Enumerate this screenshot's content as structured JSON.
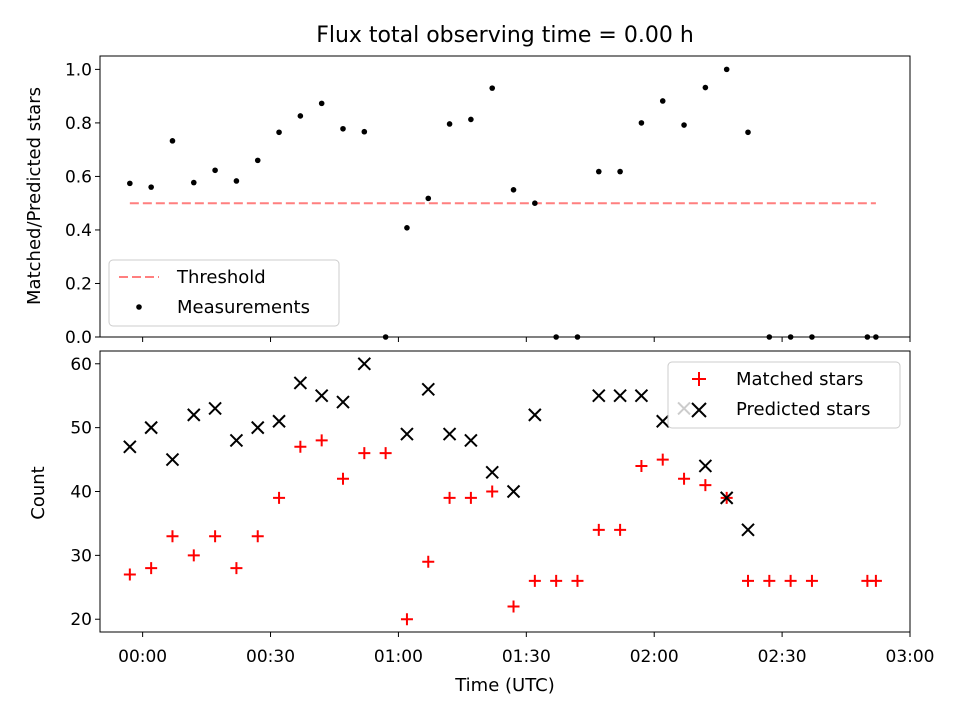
{
  "chart_data": [
    {
      "type": "scatter",
      "title": "Flux total observing time = 0.00 h",
      "xlabel": "",
      "ylabel": "Matched/Predicted stars",
      "ylim": [
        0,
        1.05
      ],
      "yticks": [
        0.0,
        0.2,
        0.4,
        0.6,
        0.8,
        1.0
      ],
      "ytick_labels": [
        "0.0",
        "0.2",
        "0.4",
        "0.6",
        "0.8",
        "1.0"
      ],
      "x_unit": "minutes after 00:00 UTC",
      "xlim": [
        -10,
        180
      ],
      "grid": false,
      "legend_placement": "lower-left",
      "series": [
        {
          "name": "Threshold",
          "style": "dashed-line",
          "color": "#ff7f7f",
          "x": [
            -3,
            172
          ],
          "y": [
            0.5,
            0.5
          ]
        },
        {
          "name": "Measurements",
          "style": "dot",
          "color": "#000000",
          "x": [
            -3,
            2,
            7,
            12,
            17,
            22,
            27,
            32,
            37,
            42,
            47,
            52,
            57,
            62,
            67,
            72,
            77,
            82,
            87,
            92,
            97,
            102,
            107,
            112,
            117,
            122,
            127,
            132,
            137,
            142,
            147,
            152,
            157,
            170,
            172
          ],
          "y": [
            0.574,
            0.56,
            0.733,
            0.577,
            0.623,
            0.583,
            0.66,
            0.765,
            0.826,
            0.873,
            0.778,
            0.767,
            0.0,
            0.408,
            0.518,
            0.796,
            0.813,
            0.93,
            0.55,
            0.5,
            0.0,
            0.0,
            0.618,
            0.618,
            0.8,
            0.882,
            0.792,
            0.932,
            1.0,
            0.765,
            0.0,
            0.0,
            0.0,
            0.0,
            0.0
          ]
        }
      ]
    },
    {
      "type": "scatter",
      "title": "",
      "xlabel": "Time (UTC)",
      "ylabel": "Count",
      "ylim": [
        18,
        62
      ],
      "yticks": [
        20,
        30,
        40,
        50,
        60
      ],
      "ytick_labels": [
        "20",
        "30",
        "40",
        "50",
        "60"
      ],
      "x_unit": "minutes after 00:00 UTC",
      "xlim": [
        -10,
        180
      ],
      "xticks": [
        0,
        30,
        60,
        90,
        120,
        150,
        180
      ],
      "xtick_labels": [
        "00:00",
        "00:30",
        "01:00",
        "01:30",
        "02:00",
        "02:30",
        "03:00"
      ],
      "grid": false,
      "legend_placement": "upper-right",
      "series": [
        {
          "name": "Matched stars",
          "marker": "plus",
          "color": "#ff0000",
          "x": [
            -3,
            2,
            7,
            12,
            17,
            22,
            27,
            32,
            37,
            42,
            47,
            52,
            57,
            62,
            67,
            72,
            77,
            82,
            87,
            92,
            97,
            102,
            107,
            112,
            117,
            122,
            127,
            132,
            137,
            142,
            147,
            152,
            157,
            170,
            172
          ],
          "y": [
            27,
            28,
            33,
            30,
            33,
            28,
            33,
            39,
            47,
            48,
            42,
            46,
            46,
            20,
            29,
            39,
            39,
            40,
            22,
            26,
            26,
            26,
            34,
            34,
            44,
            45,
            42,
            41,
            39,
            26,
            26,
            26,
            26,
            26,
            26
          ]
        },
        {
          "name": "Predicted stars",
          "marker": "x",
          "color": "#000000",
          "x": [
            -3,
            2,
            7,
            12,
            17,
            22,
            27,
            32,
            37,
            42,
            47,
            52,
            62,
            67,
            72,
            77,
            82,
            87,
            92,
            107,
            112,
            117,
            122,
            127,
            132,
            137,
            142
          ],
          "y": [
            47,
            50,
            45,
            52,
            53,
            48,
            50,
            51,
            57,
            55,
            54,
            60,
            49,
            56,
            49,
            48,
            43,
            40,
            52,
            55,
            55,
            55,
            51,
            53,
            44,
            39,
            34
          ]
        }
      ]
    }
  ],
  "colors": {
    "threshold": "#ff7f7f",
    "measurements": "#000000",
    "matched": "#ff0000",
    "predicted": "#000000"
  }
}
